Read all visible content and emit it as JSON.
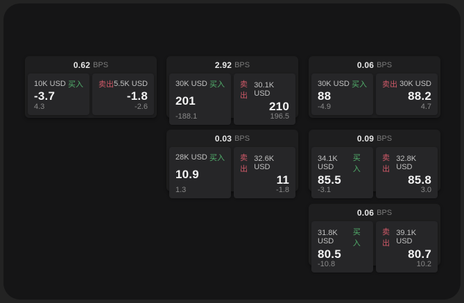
{
  "labels": {
    "bps_unit": "BPS",
    "buy": "买入",
    "sell": "卖出"
  },
  "colors": {
    "buy_green": "#52b06c",
    "sell_red": "#cf5968",
    "surface": "#151516",
    "card": "#1e1e1f",
    "panel": "#262628"
  },
  "cards": [
    {
      "grid": {
        "row": 1,
        "col": 1
      },
      "bps": "0.62",
      "buy": {
        "size": "10K USD",
        "price": "-3.7",
        "delta": "4.3"
      },
      "sell": {
        "size": "5.5K USD",
        "price": "-1.8",
        "delta": "-2.6"
      }
    },
    {
      "grid": {
        "row": 1,
        "col": 2
      },
      "bps": "2.92",
      "buy": {
        "size": "30K USD",
        "price": "201",
        "delta": "-188.1"
      },
      "sell": {
        "size": "30.1K USD",
        "price": "210",
        "delta": "196.5"
      }
    },
    {
      "grid": {
        "row": 1,
        "col": 3
      },
      "bps": "0.06",
      "buy": {
        "size": "30K USD",
        "price": "88",
        "delta": "-4.9"
      },
      "sell": {
        "size": "30K USD",
        "price": "88.2",
        "delta": "4.7"
      }
    },
    {
      "grid": {
        "row": 2,
        "col": 2
      },
      "bps": "0.03",
      "buy": {
        "size": "28K USD",
        "price": "10.9",
        "delta": "1.3"
      },
      "sell": {
        "size": "32.6K USD",
        "price": "11",
        "delta": "-1.8"
      }
    },
    {
      "grid": {
        "row": 2,
        "col": 3
      },
      "bps": "0.09",
      "buy": {
        "size": "34.1K USD",
        "price": "85.5",
        "delta": "-3.1"
      },
      "sell": {
        "size": "32.8K USD",
        "price": "85.8",
        "delta": "3.0"
      }
    },
    {
      "grid": {
        "row": 3,
        "col": 3
      },
      "bps": "0.06",
      "buy": {
        "size": "31.8K USD",
        "price": "80.5",
        "delta": "-10.8"
      },
      "sell": {
        "size": "39.1K USD",
        "price": "80.7",
        "delta": "10.2"
      }
    }
  ]
}
